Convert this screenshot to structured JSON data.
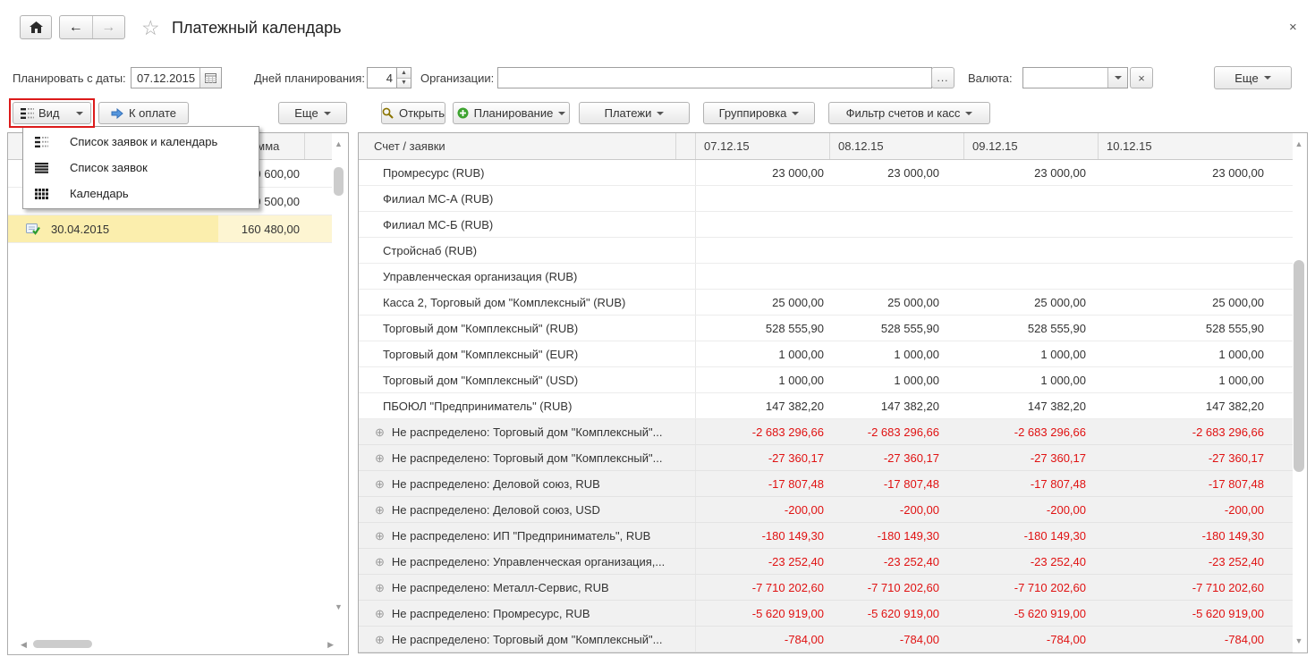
{
  "window": {
    "title": "Платежный календарь",
    "close_icon": "×"
  },
  "topnav": {
    "home_icon": "home",
    "back_icon": "arrow-left",
    "forward_icon": "arrow-right",
    "favorite_icon": "star-outline"
  },
  "filters": {
    "plan_date_label": "Планировать с даты:",
    "plan_date_value": "07.12.2015",
    "calendar_icon": "calendar",
    "days_label": "Дней планирования:",
    "days_value": "4",
    "org_label": "Организации:",
    "org_value": "",
    "org_ellipsis_button": "...",
    "currency_label": "Валюта:",
    "currency_value": "",
    "currency_clear_button": "×",
    "more_button": "Еще"
  },
  "toolbar": {
    "view_button": {
      "label": "Вид",
      "icon": "list-and-grid"
    },
    "to_pay_button": {
      "label": "К оплате",
      "icon": "blue-arrow-right"
    },
    "more_button": "Еще",
    "open_button": {
      "label": "Открыть",
      "icon": "magnifier"
    },
    "planning_button": {
      "label": "Планирование",
      "icon": "green-plus"
    },
    "payments_button": "Платежи",
    "grouping_button": "Группировка",
    "filter_accounts_button": "Фильтр счетов и касс"
  },
  "view_menu": {
    "items": [
      {
        "icon": "list-and-grid",
        "label": "Список заявок и календарь"
      },
      {
        "icon": "list-lines",
        "label": "Список заявок"
      },
      {
        "icon": "grid",
        "label": "Календарь"
      }
    ]
  },
  "left_panel": {
    "sum_header": "Сумма",
    "rows": [
      {
        "icon": "",
        "date": "",
        "amount": "0 600,00",
        "selected": false
      },
      {
        "icon": "",
        "date": "",
        "amount": "9 500,00",
        "selected": false
      },
      {
        "icon": "doc-check",
        "date": "30.04.2015",
        "amount": "160 480,00",
        "selected": true
      }
    ]
  },
  "main_table": {
    "name_header": "Счет / заявки",
    "date_headers": [
      "07.12.15",
      "08.12.15",
      "09.12.15",
      "10.12.15"
    ],
    "rows": [
      {
        "name": "Промресурс (RUB)",
        "expandable": false,
        "negative": false,
        "values": [
          "23 000,00",
          "23 000,00",
          "23 000,00",
          "23 000,00"
        ]
      },
      {
        "name": "Филиал МС-А (RUB)",
        "expandable": false,
        "negative": false,
        "values": [
          "",
          "",
          "",
          ""
        ]
      },
      {
        "name": "Филиал МС-Б (RUB)",
        "expandable": false,
        "negative": false,
        "values": [
          "",
          "",
          "",
          ""
        ]
      },
      {
        "name": "Стройснаб (RUB)",
        "expandable": false,
        "negative": false,
        "values": [
          "",
          "",
          "",
          ""
        ]
      },
      {
        "name": "Управленческая организация (RUB)",
        "expandable": false,
        "negative": false,
        "values": [
          "",
          "",
          "",
          ""
        ]
      },
      {
        "name": "Касса 2, Торговый дом \"Комплексный\" (RUB)",
        "expandable": false,
        "negative": false,
        "values": [
          "25 000,00",
          "25 000,00",
          "25 000,00",
          "25 000,00"
        ]
      },
      {
        "name": "Торговый дом \"Комплексный\" (RUB)",
        "expandable": false,
        "negative": false,
        "values": [
          "528 555,90",
          "528 555,90",
          "528 555,90",
          "528 555,90"
        ]
      },
      {
        "name": "Торговый дом \"Комплексный\" (EUR)",
        "expandable": false,
        "negative": false,
        "values": [
          "1 000,00",
          "1 000,00",
          "1 000,00",
          "1 000,00"
        ]
      },
      {
        "name": "Торговый дом \"Комплексный\" (USD)",
        "expandable": false,
        "negative": false,
        "values": [
          "1 000,00",
          "1 000,00",
          "1 000,00",
          "1 000,00"
        ]
      },
      {
        "name": "ПБОЮЛ \"Предприниматель\" (RUB)",
        "expandable": false,
        "negative": false,
        "values": [
          "147 382,20",
          "147 382,20",
          "147 382,20",
          "147 382,20"
        ]
      },
      {
        "name": "Не распределено: Торговый дом \"Комплексный\"...",
        "expandable": true,
        "negative": true,
        "values": [
          "-2 683 296,66",
          "-2 683 296,66",
          "-2 683 296,66",
          "-2 683 296,66"
        ]
      },
      {
        "name": "Не распределено: Торговый дом \"Комплексный\"...",
        "expandable": true,
        "negative": true,
        "values": [
          "-27 360,17",
          "-27 360,17",
          "-27 360,17",
          "-27 360,17"
        ]
      },
      {
        "name": "Не распределено: Деловой союз, RUB",
        "expandable": true,
        "negative": true,
        "values": [
          "-17 807,48",
          "-17 807,48",
          "-17 807,48",
          "-17 807,48"
        ]
      },
      {
        "name": "Не распределено: Деловой союз, USD",
        "expandable": true,
        "negative": true,
        "values": [
          "-200,00",
          "-200,00",
          "-200,00",
          "-200,00"
        ]
      },
      {
        "name": "Не распределено: ИП \"Предприниматель\", RUB",
        "expandable": true,
        "negative": true,
        "values": [
          "-180 149,30",
          "-180 149,30",
          "-180 149,30",
          "-180 149,30"
        ]
      },
      {
        "name": "Не распределено: Управленческая организация,...",
        "expandable": true,
        "negative": true,
        "values": [
          "-23 252,40",
          "-23 252,40",
          "-23 252,40",
          "-23 252,40"
        ]
      },
      {
        "name": "Не распределено: Металл-Сервис, RUB",
        "expandable": true,
        "negative": true,
        "values": [
          "-7 710 202,60",
          "-7 710 202,60",
          "-7 710 202,60",
          "-7 710 202,60"
        ]
      },
      {
        "name": "Не распределено: Промресурс, RUB",
        "expandable": true,
        "negative": true,
        "values": [
          "-5 620 919,00",
          "-5 620 919,00",
          "-5 620 919,00",
          "-5 620 919,00"
        ]
      },
      {
        "name": "Не распределено: Торговый дом \"Комплексный\"...",
        "expandable": true,
        "negative": true,
        "values": [
          "-784,00",
          "-784,00",
          "-784,00",
          "-784,00"
        ]
      }
    ]
  },
  "colors": {
    "negative_value": "#e01212",
    "selection_yellow": "#fbeead",
    "annotation_red": "#dc1a1a",
    "accent_blue": "#4a90d9",
    "green_plus": "#3da32f"
  }
}
